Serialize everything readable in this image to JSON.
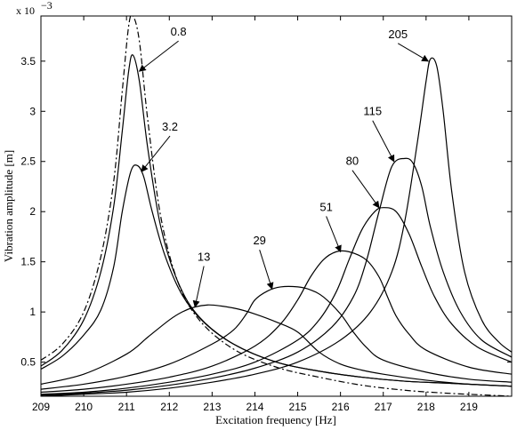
{
  "chart_data": {
    "type": "line",
    "title": "",
    "xlabel": "Excitation frequency [Hz]",
    "ylabel": "Vibration amplitude [m]",
    "y_multiplier_label": "x 10",
    "y_multiplier_exp": "−3",
    "xlim": [
      209,
      220
    ],
    "ylim": [
      0.16,
      3.95
    ],
    "xticks": [
      209,
      210,
      211,
      212,
      213,
      214,
      215,
      216,
      217,
      218,
      219
    ],
    "xtick_labels": [
      "209",
      "210",
      "211",
      "212",
      "213",
      "214",
      "215",
      "216",
      "217",
      "218",
      "219"
    ],
    "yticks": [
      0.5,
      1,
      1.5,
      2,
      2.5,
      3,
      3.5
    ],
    "ytick_labels": [
      "0.5",
      "1",
      "1.5",
      "2",
      "2.5",
      "3",
      "3.5"
    ],
    "grid": false,
    "series": [
      {
        "name": "0.8",
        "style": "solid",
        "x": [
          209,
          209.5,
          210,
          210.4,
          210.7,
          210.9,
          211.05,
          211.15,
          211.3,
          211.5,
          211.8,
          212.2,
          212.7,
          213.5,
          214.5,
          215.5,
          216.5,
          217.5,
          218.5,
          219.5,
          220
        ],
        "y": [
          0.46,
          0.62,
          0.92,
          1.4,
          2.05,
          2.8,
          3.4,
          3.56,
          3.3,
          2.62,
          1.85,
          1.3,
          0.95,
          0.68,
          0.5,
          0.41,
          0.35,
          0.31,
          0.29,
          0.27,
          0.26
        ]
      },
      {
        "name": "3.2",
        "style": "solid",
        "x": [
          209,
          209.5,
          210,
          210.4,
          210.7,
          210.9,
          211.1,
          211.25,
          211.4,
          211.6,
          211.9,
          212.3,
          212.8,
          213.5,
          214.5,
          215.5,
          216.5,
          217.5,
          218.5,
          219.5,
          220
        ],
        "y": [
          0.43,
          0.56,
          0.77,
          1.02,
          1.45,
          2.0,
          2.4,
          2.46,
          2.35,
          2.0,
          1.56,
          1.17,
          0.9,
          0.68,
          0.5,
          0.41,
          0.35,
          0.31,
          0.29,
          0.27,
          0.26
        ]
      },
      {
        "name": "13",
        "style": "solid",
        "x": [
          209,
          210,
          211,
          211.5,
          212,
          212.3,
          212.6,
          212.9,
          213.2,
          213.6,
          214,
          214.5,
          215,
          215.5,
          216,
          216.5,
          217,
          218,
          219,
          220
        ],
        "y": [
          0.28,
          0.38,
          0.58,
          0.75,
          0.92,
          1.0,
          1.05,
          1.07,
          1.06,
          1.03,
          0.98,
          0.9,
          0.8,
          0.6,
          0.48,
          0.42,
          0.38,
          0.32,
          0.28,
          0.26
        ]
      },
      {
        "name": "29",
        "style": "solid",
        "x": [
          209,
          210,
          211,
          212,
          213,
          213.5,
          213.8,
          214,
          214.3,
          214.6,
          215,
          215.3,
          215.6,
          216,
          216.3,
          216.6,
          217,
          218,
          219,
          220
        ],
        "y": [
          0.23,
          0.28,
          0.36,
          0.48,
          0.68,
          0.82,
          0.98,
          1.12,
          1.21,
          1.25,
          1.25,
          1.22,
          1.15,
          0.98,
          0.8,
          0.65,
          0.52,
          0.4,
          0.33,
          0.3
        ]
      },
      {
        "name": "51",
        "style": "solid",
        "x": [
          209,
          210,
          211,
          212,
          213,
          214,
          214.6,
          215,
          215.3,
          215.6,
          215.9,
          216.2,
          216.6,
          216.9,
          217.1,
          217.3,
          217.6,
          218,
          219,
          220
        ],
        "y": [
          0.2,
          0.23,
          0.28,
          0.35,
          0.46,
          0.66,
          0.88,
          1.12,
          1.35,
          1.52,
          1.6,
          1.6,
          1.52,
          1.35,
          1.15,
          0.96,
          0.78,
          0.62,
          0.45,
          0.38
        ]
      },
      {
        "name": "80",
        "style": "solid",
        "x": [
          209,
          210,
          211,
          212,
          213,
          214,
          215,
          215.5,
          215.9,
          216.2,
          216.5,
          216.8,
          217,
          217.3,
          217.6,
          217.9,
          218.2,
          218.6,
          219.2,
          220
        ],
        "y": [
          0.18,
          0.2,
          0.24,
          0.3,
          0.38,
          0.5,
          0.72,
          0.92,
          1.2,
          1.52,
          1.82,
          2.0,
          2.04,
          2.0,
          1.78,
          1.45,
          1.15,
          0.88,
          0.65,
          0.5
        ]
      },
      {
        "name": "115",
        "style": "solid",
        "x": [
          209,
          210,
          211,
          212,
          213,
          214,
          215,
          215.8,
          216.3,
          216.6,
          216.9,
          217.2,
          217.5,
          217.7,
          217.9,
          218.1,
          218.4,
          218.8,
          219.3,
          220
        ],
        "y": [
          0.17,
          0.19,
          0.22,
          0.27,
          0.34,
          0.44,
          0.6,
          0.85,
          1.15,
          1.5,
          2.0,
          2.45,
          2.53,
          2.48,
          2.25,
          1.85,
          1.4,
          1.0,
          0.72,
          0.55
        ]
      },
      {
        "name": "205",
        "style": "solid",
        "x": [
          209,
          210,
          211,
          212,
          213,
          214,
          215,
          216,
          216.7,
          217.2,
          217.5,
          217.8,
          218,
          218.1,
          218.25,
          218.4,
          218.6,
          218.9,
          219.3,
          219.7,
          220
        ],
        "y": [
          0.16,
          0.18,
          0.2,
          0.24,
          0.3,
          0.38,
          0.5,
          0.72,
          1.0,
          1.4,
          1.9,
          2.7,
          3.3,
          3.52,
          3.45,
          3.0,
          2.2,
          1.4,
          0.92,
          0.7,
          0.6
        ]
      },
      {
        "name": "",
        "style": "dashdot",
        "x": [
          209,
          209.5,
          210,
          210.4,
          210.7,
          210.9,
          211.05,
          211.15,
          211.3,
          211.5,
          211.8,
          212.2,
          212.7,
          213.5,
          214.5,
          215.5,
          216.5,
          217.5,
          218.5,
          219.5,
          220
        ],
        "y": [
          0.52,
          0.68,
          1.0,
          1.55,
          2.3,
          3.2,
          3.85,
          3.95,
          3.7,
          2.9,
          1.95,
          1.3,
          0.92,
          0.63,
          0.45,
          0.35,
          0.27,
          0.22,
          0.19,
          0.17,
          0.16
        ]
      }
    ],
    "annotations": [
      {
        "text": "0.8",
        "series": "0.8",
        "x": 211.3,
        "y": 3.4
      },
      {
        "text": "3.2",
        "series": "3.2",
        "x": 211.35,
        "y": 2.4
      },
      {
        "text": "13",
        "series": "13",
        "x": 212.6,
        "y": 1.05
      },
      {
        "text": "29",
        "series": "29",
        "x": 214.4,
        "y": 1.23
      },
      {
        "text": "51",
        "series": "51",
        "x": 216.0,
        "y": 1.6
      },
      {
        "text": "80",
        "series": "80",
        "x": 216.9,
        "y": 2.04
      },
      {
        "text": "115",
        "series": "115",
        "x": 217.25,
        "y": 2.5
      },
      {
        "text": "205",
        "series": "205",
        "x": 218.05,
        "y": 3.5
      }
    ]
  }
}
